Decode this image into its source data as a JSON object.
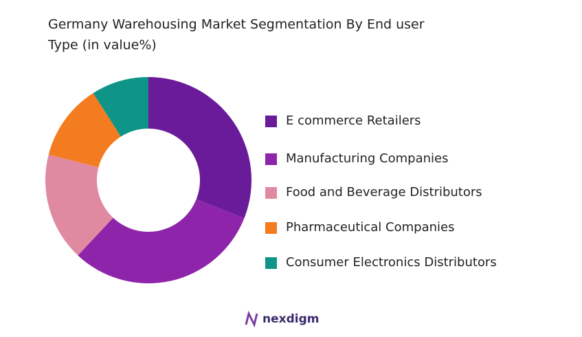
{
  "chart_data": {
    "type": "donut",
    "title": [
      "Germany Warehousing  Market Segmentation By End user",
      "Type (in value%)"
    ],
    "categories": [
      "E commerce Retailers",
      "Manufacturing Companies",
      "Food and Beverage Distributors",
      "Pharmaceutical Companies",
      "Consumer Electronics Distributors"
    ],
    "values": [
      31,
      31,
      17,
      12,
      9
    ],
    "colors": [
      "#6a1b9a",
      "#8e24aa",
      "#e08aa2",
      "#f47c20",
      "#0f9488"
    ],
    "legend": "right"
  },
  "brand": "nexdigm"
}
